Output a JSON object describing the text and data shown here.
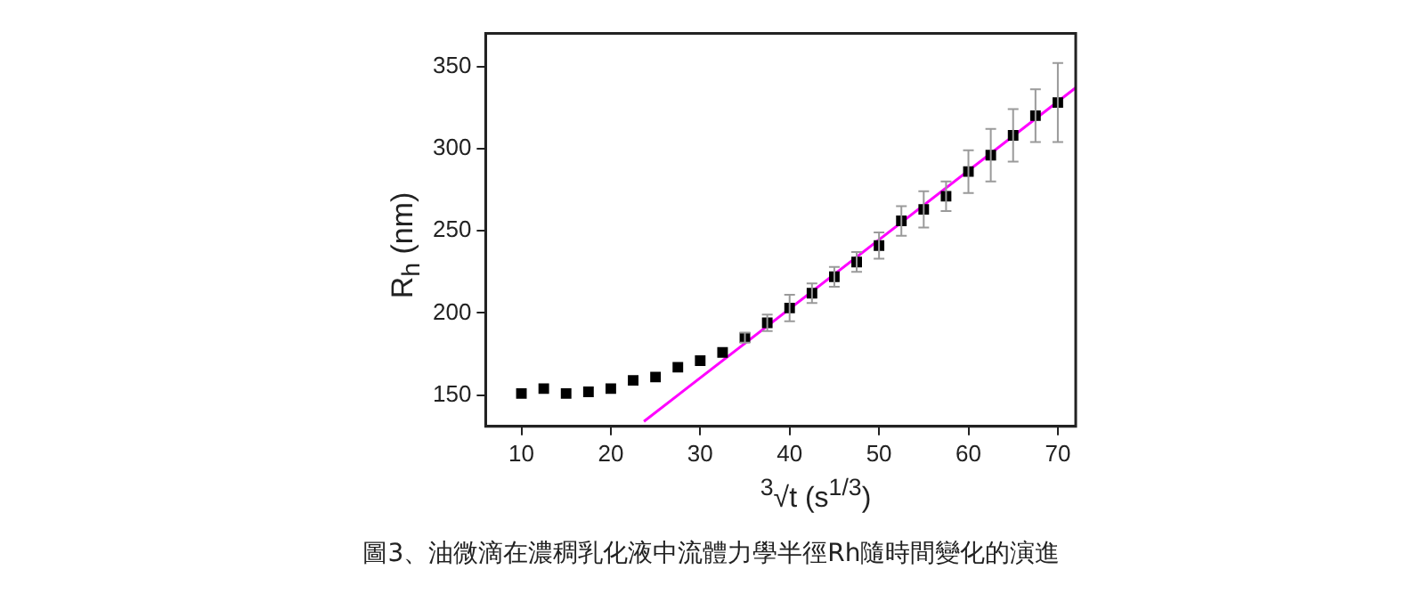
{
  "chart_data": {
    "type": "scatter",
    "xlabel": "$^{3}$√t (s$^{1/3}$)",
    "ylabel": "R$_{h}$ (nm)",
    "annotations": [
      "圖3、油微滴在濃稠乳化液中流體力學半徑Rh隨時間變化的演進"
    ],
    "xlim": [
      6,
      72
    ],
    "ylim": [
      131,
      370
    ],
    "xticks": [
      10,
      20,
      30,
      40,
      50,
      60,
      70
    ],
    "yticks": [
      150,
      200,
      250,
      300,
      350
    ],
    "grid": false,
    "series": [
      {
        "color": "#000000",
        "marker": "square",
        "x": [
          10,
          12.5,
          15,
          17.5,
          20,
          22.5,
          25,
          27.5,
          30,
          32.5,
          35,
          37.5,
          40,
          42.5,
          45,
          47.5,
          50,
          52.5,
          55,
          57.5,
          60,
          62.5,
          65,
          67.5,
          70
        ],
        "values": [
          151,
          154,
          151,
          152,
          154,
          159,
          161,
          167,
          171,
          176,
          185,
          194,
          203,
          212,
          222,
          231,
          241,
          256,
          263,
          271,
          286,
          296,
          308,
          320,
          328
        ],
        "errors": [
          null,
          null,
          null,
          null,
          null,
          null,
          null,
          null,
          null,
          null,
          3,
          5,
          8,
          6,
          6,
          6,
          8,
          9,
          11,
          9,
          13,
          16,
          16,
          16,
          24
        ]
      },
      {
        "type": "line",
        "color": "#ff00ff",
        "line_style": "solid",
        "x": [
          23.7,
          72
        ],
        "values": [
          134,
          337
        ]
      }
    ]
  }
}
